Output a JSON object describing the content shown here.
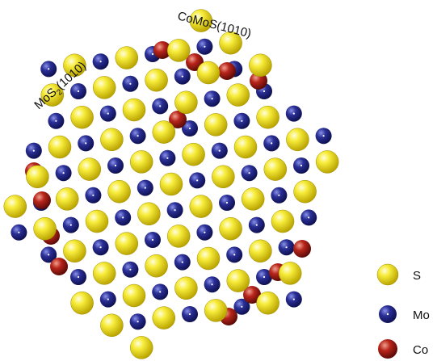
{
  "edge_labels": {
    "mos2_edge": "MoS2(1010)",
    "comos_edge": "CoMoS(1010)"
  },
  "legend": {
    "items": [
      {
        "key": "s",
        "label": "S",
        "color": "#f2e21a"
      },
      {
        "key": "mo",
        "label": "Mo",
        "color": "#2a2f96"
      },
      {
        "key": "co",
        "label": "Co",
        "color": "#b8251b"
      }
    ]
  },
  "colors": {
    "sulfur": "#f2e21a",
    "molybdenum": "#2a2f96",
    "cobalt": "#b8251b"
  }
}
